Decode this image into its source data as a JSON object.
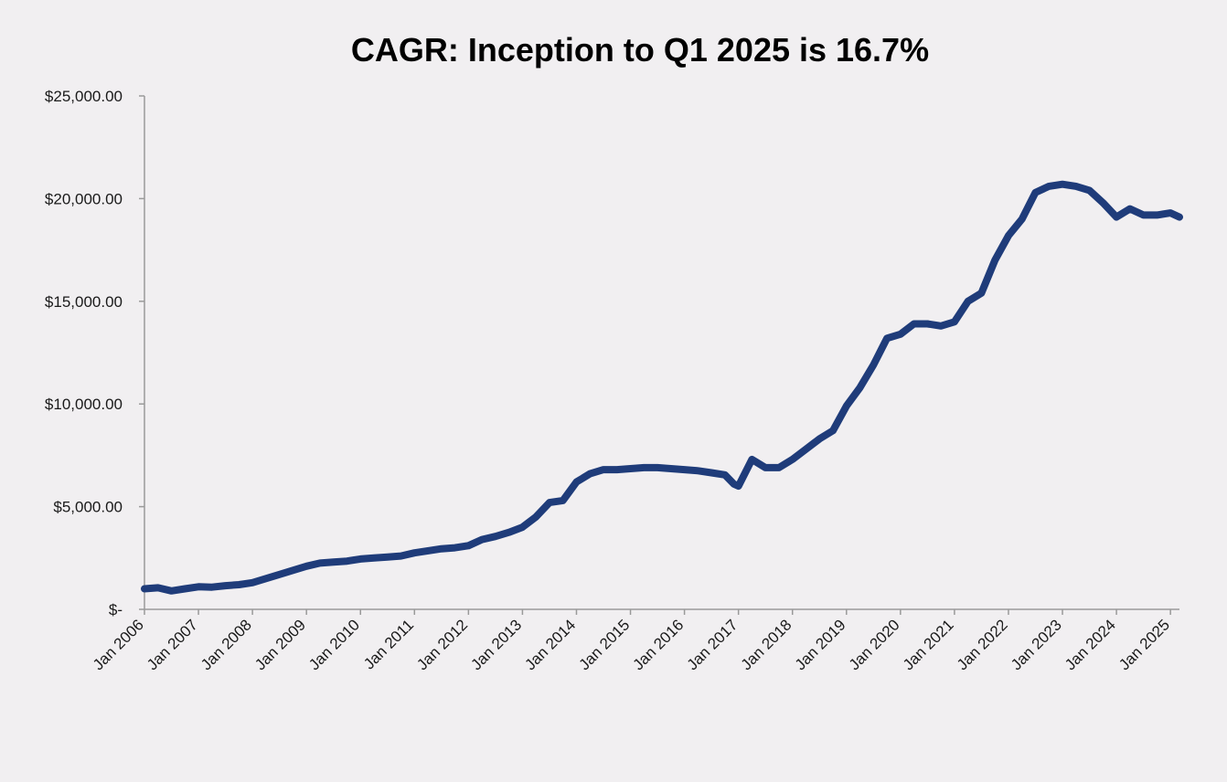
{
  "chart_data": {
    "type": "line",
    "title": "CAGR: Inception to Q1 2025 is 16.7%",
    "xlabel": "",
    "ylabel": "",
    "ylim": [
      0,
      25000
    ],
    "xlim": [
      "2006-01",
      "2025-03"
    ],
    "y_ticks": [
      {
        "value": 0,
        "label": "$-"
      },
      {
        "value": 5000,
        "label": "$5,000.00"
      },
      {
        "value": 10000,
        "label": "$10,000.00"
      },
      {
        "value": 15000,
        "label": "$15,000.00"
      },
      {
        "value": 20000,
        "label": "$20,000.00"
      },
      {
        "value": 25000,
        "label": "$25,000.00"
      }
    ],
    "x_ticks": [
      {
        "value": "2006-01",
        "label": "Jan 2006"
      },
      {
        "value": "2007-01",
        "label": "Jan 2007"
      },
      {
        "value": "2008-01",
        "label": "Jan 2008"
      },
      {
        "value": "2009-01",
        "label": "Jan 2009"
      },
      {
        "value": "2010-01",
        "label": "Jan 2010"
      },
      {
        "value": "2011-01",
        "label": "Jan 2011"
      },
      {
        "value": "2012-01",
        "label": "Jan 2012"
      },
      {
        "value": "2013-01",
        "label": "Jan 2013"
      },
      {
        "value": "2014-01",
        "label": "Jan 2014"
      },
      {
        "value": "2015-01",
        "label": "Jan 2015"
      },
      {
        "value": "2016-01",
        "label": "Jan 2016"
      },
      {
        "value": "2017-01",
        "label": "Jan 2017"
      },
      {
        "value": "2018-01",
        "label": "Jan 2018"
      },
      {
        "value": "2019-01",
        "label": "Jan 2019"
      },
      {
        "value": "2020-01",
        "label": "Jan 2020"
      },
      {
        "value": "2021-01",
        "label": "Jan 2021"
      },
      {
        "value": "2022-01",
        "label": "Jan 2022"
      },
      {
        "value": "2023-01",
        "label": "Jan 2023"
      },
      {
        "value": "2024-01",
        "label": "Jan 2024"
      },
      {
        "value": "2025-01",
        "label": "Jan 2025"
      }
    ],
    "grid": false,
    "legend": "none",
    "series": [
      {
        "color": "#1f3c7a",
        "points": [
          [
            "2006-01",
            1000
          ],
          [
            "2006-04",
            1050
          ],
          [
            "2006-07",
            900
          ],
          [
            "2006-10",
            1000
          ],
          [
            "2007-01",
            1100
          ],
          [
            "2007-04",
            1080
          ],
          [
            "2007-07",
            1150
          ],
          [
            "2007-10",
            1200
          ],
          [
            "2008-01",
            1300
          ],
          [
            "2008-04",
            1500
          ],
          [
            "2008-07",
            1700
          ],
          [
            "2008-10",
            1900
          ],
          [
            "2009-01",
            2100
          ],
          [
            "2009-04",
            2250
          ],
          [
            "2009-07",
            2300
          ],
          [
            "2009-10",
            2350
          ],
          [
            "2010-01",
            2450
          ],
          [
            "2010-04",
            2500
          ],
          [
            "2010-07",
            2550
          ],
          [
            "2010-10",
            2600
          ],
          [
            "2011-01",
            2750
          ],
          [
            "2011-04",
            2850
          ],
          [
            "2011-07",
            2950
          ],
          [
            "2011-10",
            3000
          ],
          [
            "2012-01",
            3100
          ],
          [
            "2012-04",
            3400
          ],
          [
            "2012-07",
            3550
          ],
          [
            "2012-10",
            3750
          ],
          [
            "2013-01",
            4000
          ],
          [
            "2013-04",
            4500
          ],
          [
            "2013-07",
            5200
          ],
          [
            "2013-10",
            5300
          ],
          [
            "2014-01",
            6200
          ],
          [
            "2014-04",
            6600
          ],
          [
            "2014-07",
            6800
          ],
          [
            "2014-10",
            6800
          ],
          [
            "2015-01",
            6850
          ],
          [
            "2015-04",
            6900
          ],
          [
            "2015-07",
            6900
          ],
          [
            "2015-10",
            6850
          ],
          [
            "2016-01",
            6800
          ],
          [
            "2016-04",
            6750
          ],
          [
            "2016-07",
            6650
          ],
          [
            "2016-10",
            6550
          ],
          [
            "2016-12",
            6100
          ],
          [
            "2017-01",
            6000
          ],
          [
            "2017-04",
            7300
          ],
          [
            "2017-07",
            6900
          ],
          [
            "2017-10",
            6900
          ],
          [
            "2018-01",
            7300
          ],
          [
            "2018-04",
            7800
          ],
          [
            "2018-07",
            8300
          ],
          [
            "2018-10",
            8700
          ],
          [
            "2019-01",
            9900
          ],
          [
            "2019-04",
            10800
          ],
          [
            "2019-07",
            11900
          ],
          [
            "2019-10",
            13200
          ],
          [
            "2020-01",
            13400
          ],
          [
            "2020-04",
            13900
          ],
          [
            "2020-07",
            13900
          ],
          [
            "2020-10",
            13800
          ],
          [
            "2021-01",
            14000
          ],
          [
            "2021-04",
            15000
          ],
          [
            "2021-07",
            15400
          ],
          [
            "2021-10",
            17000
          ],
          [
            "2022-01",
            18200
          ],
          [
            "2022-04",
            19000
          ],
          [
            "2022-07",
            20300
          ],
          [
            "2022-10",
            20600
          ],
          [
            "2023-01",
            20700
          ],
          [
            "2023-04",
            20600
          ],
          [
            "2023-07",
            20400
          ],
          [
            "2023-10",
            19800
          ],
          [
            "2024-01",
            19100
          ],
          [
            "2024-04",
            19500
          ],
          [
            "2024-07",
            19200
          ],
          [
            "2024-10",
            19200
          ],
          [
            "2025-01",
            19300
          ],
          [
            "2025-03",
            19100
          ]
        ]
      }
    ]
  }
}
